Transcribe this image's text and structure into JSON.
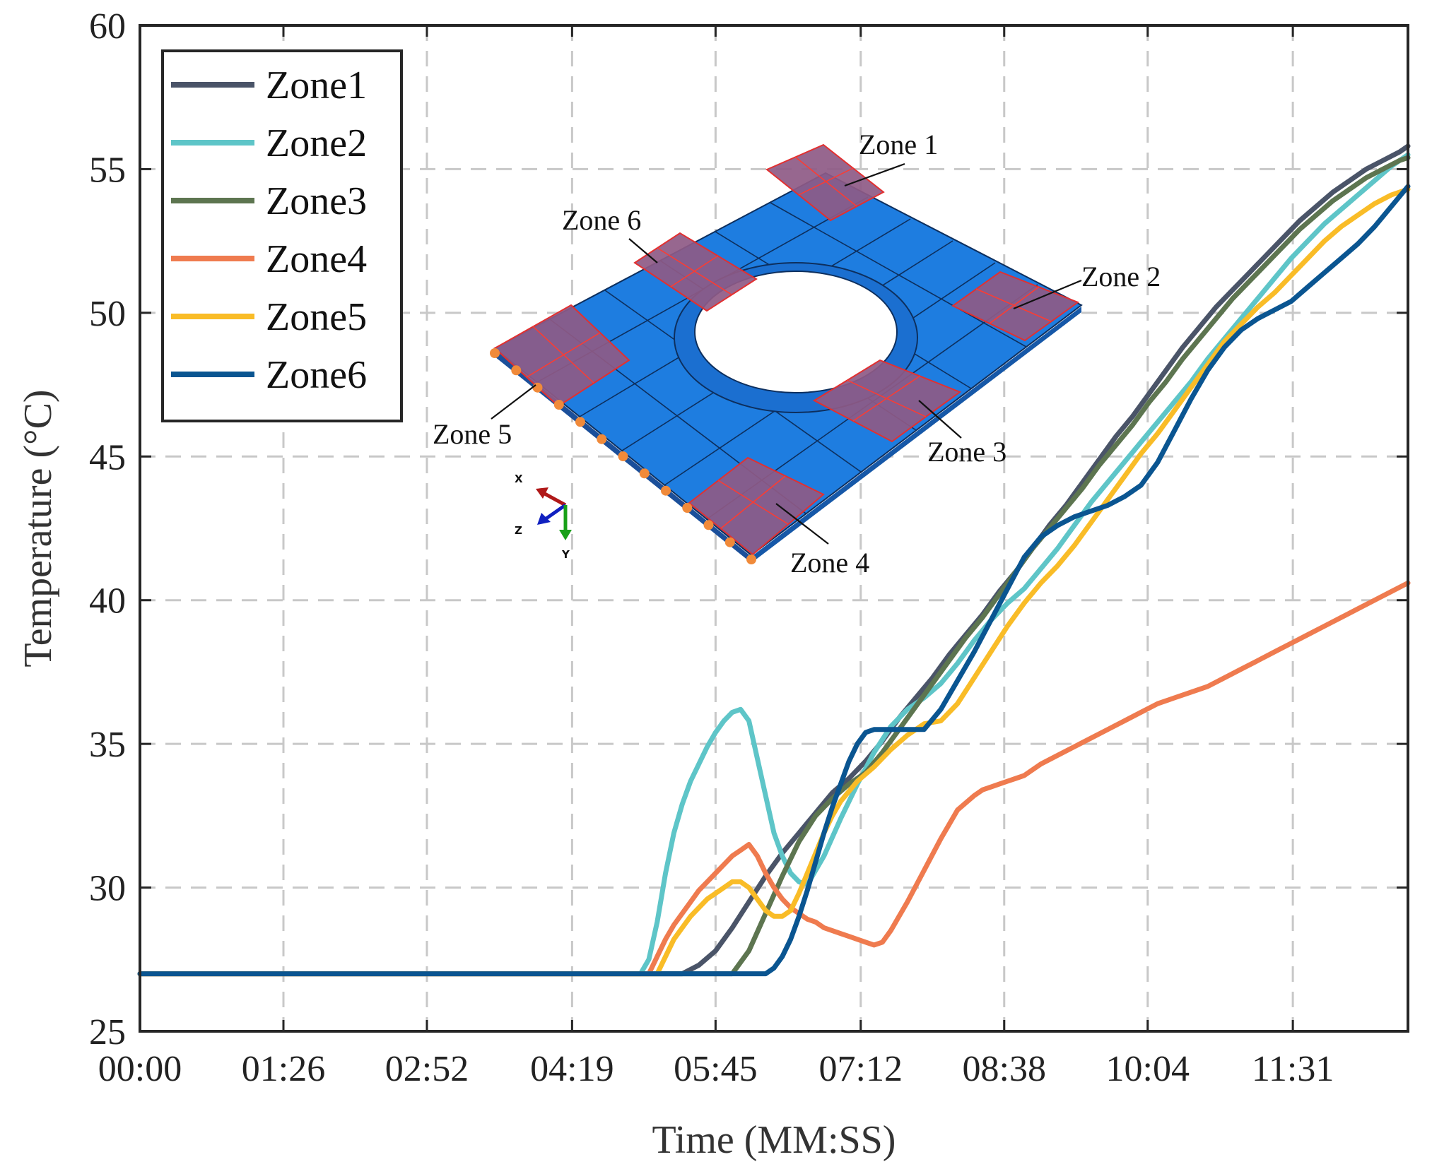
{
  "chart_data": {
    "type": "line",
    "xlabel": "Time (MM:SS)",
    "ylabel": "Temperature (°C)",
    "xlim": [
      0,
      760
    ],
    "ylim": [
      25,
      60
    ],
    "x_ticks": [
      {
        "value": 0,
        "label": "00:00"
      },
      {
        "value": 86,
        "label": "01:26"
      },
      {
        "value": 172,
        "label": "02:52"
      },
      {
        "value": 259,
        "label": "04:19"
      },
      {
        "value": 345,
        "label": "05:45"
      },
      {
        "value": 432,
        "label": "07:12"
      },
      {
        "value": 518,
        "label": "08:38"
      },
      {
        "value": 604,
        "label": "10:04"
      },
      {
        "value": 691,
        "label": "11:31"
      }
    ],
    "y_ticks": [
      25,
      30,
      35,
      40,
      45,
      50,
      55,
      60
    ],
    "grid": true,
    "legend_position": "top-left",
    "series": [
      {
        "name": "Zone1",
        "color": "#4a5468",
        "x": [
          0,
          325,
          335,
          345,
          355,
          365,
          375,
          385,
          395,
          405,
          415,
          425,
          435,
          445,
          455,
          465,
          475,
          485,
          495,
          505,
          515,
          525,
          535,
          545,
          555,
          565,
          575,
          585,
          595,
          605,
          615,
          625,
          635,
          645,
          655,
          665,
          675,
          685,
          695,
          705,
          715,
          725,
          735,
          745,
          755,
          760
        ],
        "y": [
          27,
          27,
          27.3,
          27.8,
          28.6,
          29.5,
          30.4,
          31.2,
          31.9,
          32.6,
          33.3,
          33.8,
          34.4,
          35.1,
          35.9,
          36.6,
          37.3,
          38.1,
          38.8,
          39.5,
          40.3,
          41,
          41.8,
          42.6,
          43.3,
          44.1,
          44.9,
          45.7,
          46.4,
          47.2,
          48,
          48.8,
          49.5,
          50.2,
          50.8,
          51.4,
          52,
          52.6,
          53.2,
          53.7,
          54.2,
          54.6,
          55,
          55.3,
          55.6,
          55.8
        ]
      },
      {
        "name": "Zone2",
        "color": "#5ec5c8",
        "x": [
          0,
          300,
          305,
          310,
          315,
          320,
          325,
          330,
          335,
          340,
          345,
          350,
          355,
          360,
          365,
          370,
          375,
          380,
          385,
          390,
          395,
          400,
          410,
          420,
          430,
          440,
          450,
          460,
          470,
          480,
          490,
          500,
          510,
          520,
          530,
          540,
          550,
          560,
          570,
          580,
          590,
          600,
          610,
          620,
          630,
          640,
          650,
          660,
          670,
          680,
          690,
          700,
          710,
          720,
          730,
          740,
          750,
          760
        ],
        "y": [
          27,
          27,
          27.5,
          28.8,
          30.5,
          31.9,
          32.9,
          33.7,
          34.3,
          34.9,
          35.4,
          35.8,
          36.1,
          36.2,
          35.8,
          34.5,
          33.2,
          31.9,
          31.1,
          30.5,
          30.2,
          30.1,
          31.1,
          32.4,
          33.6,
          34.7,
          35.6,
          36.2,
          36.6,
          37.1,
          37.8,
          38.6,
          39.3,
          39.9,
          40.4,
          41.1,
          41.8,
          42.6,
          43.4,
          44.1,
          44.8,
          45.5,
          46.2,
          46.9,
          47.6,
          48.4,
          49.1,
          49.8,
          50.5,
          51.2,
          51.9,
          52.5,
          53.1,
          53.6,
          54.1,
          54.6,
          55.1,
          55.5
        ]
      },
      {
        "name": "Zone3",
        "color": "#5d7550",
        "x": [
          0,
          355,
          365,
          375,
          385,
          395,
          405,
          415,
          425,
          435,
          445,
          455,
          465,
          475,
          485,
          495,
          505,
          515,
          525,
          535,
          545,
          555,
          565,
          575,
          585,
          595,
          605,
          615,
          625,
          635,
          645,
          655,
          665,
          675,
          685,
          695,
          705,
          715,
          725,
          735,
          745,
          755,
          760
        ],
        "y": [
          27,
          27,
          27.8,
          29.1,
          30.4,
          31.6,
          32.5,
          33.1,
          33.6,
          34,
          34.7,
          35.5,
          36.3,
          37.1,
          37.9,
          38.7,
          39.4,
          40.2,
          41,
          41.8,
          42.5,
          43.2,
          43.9,
          44.7,
          45.4,
          46.1,
          46.9,
          47.6,
          48.4,
          49.1,
          49.8,
          50.5,
          51.1,
          51.7,
          52.3,
          52.9,
          53.4,
          53.9,
          54.3,
          54.7,
          55,
          55.3,
          55.4
        ]
      },
      {
        "name": "Zone4",
        "color": "#ef7b4f",
        "x": [
          0,
          305,
          310,
          315,
          320,
          325,
          330,
          335,
          340,
          345,
          350,
          355,
          360,
          365,
          370,
          375,
          380,
          385,
          390,
          395,
          400,
          405,
          410,
          415,
          420,
          425,
          430,
          435,
          440,
          445,
          450,
          460,
          470,
          480,
          490,
          500,
          505,
          510,
          515,
          520,
          525,
          530,
          535,
          540,
          550,
          560,
          570,
          580,
          590,
          600,
          610,
          620,
          630,
          640,
          650,
          660,
          670,
          680,
          690,
          700,
          710,
          720,
          730,
          740,
          750,
          760
        ],
        "y": [
          27,
          27,
          27.6,
          28.2,
          28.7,
          29.1,
          29.5,
          29.9,
          30.2,
          30.5,
          30.8,
          31.1,
          31.3,
          31.5,
          31.1,
          30.5,
          30,
          29.6,
          29.3,
          29.1,
          28.9,
          28.8,
          28.6,
          28.5,
          28.4,
          28.3,
          28.2,
          28.1,
          28,
          28.1,
          28.5,
          29.5,
          30.6,
          31.7,
          32.7,
          33.2,
          33.4,
          33.5,
          33.6,
          33.7,
          33.8,
          33.9,
          34.1,
          34.3,
          34.6,
          34.9,
          35.2,
          35.5,
          35.8,
          36.1,
          36.4,
          36.6,
          36.8,
          37,
          37.3,
          37.6,
          37.9,
          38.2,
          38.5,
          38.8,
          39.1,
          39.4,
          39.7,
          40,
          40.3,
          40.6
        ]
      },
      {
        "name": "Zone5",
        "color": "#f9bc27",
        "x": [
          0,
          310,
          315,
          320,
          325,
          330,
          335,
          340,
          345,
          350,
          355,
          360,
          365,
          370,
          375,
          380,
          385,
          390,
          395,
          400,
          405,
          410,
          415,
          420,
          430,
          440,
          450,
          460,
          470,
          480,
          490,
          500,
          510,
          520,
          530,
          540,
          550,
          560,
          570,
          580,
          590,
          600,
          610,
          620,
          630,
          640,
          650,
          660,
          670,
          680,
          690,
          700,
          710,
          720,
          730,
          740,
          750,
          760
        ],
        "y": [
          27,
          27,
          27.6,
          28.2,
          28.6,
          29,
          29.3,
          29.6,
          29.8,
          30,
          30.2,
          30.2,
          30,
          29.6,
          29.2,
          29,
          29,
          29.2,
          29.8,
          30.5,
          31.2,
          31.9,
          32.5,
          33,
          33.7,
          34.2,
          34.8,
          35.3,
          35.7,
          35.8,
          36.4,
          37.3,
          38.2,
          39.1,
          39.9,
          40.6,
          41.2,
          41.9,
          42.7,
          43.5,
          44.3,
          45.1,
          45.8,
          46.6,
          47.4,
          48.2,
          49,
          49.6,
          50.2,
          50.7,
          51.3,
          51.9,
          52.5,
          53,
          53.4,
          53.8,
          54.1,
          54.3
        ]
      },
      {
        "name": "Zone6",
        "color": "#0a5591",
        "x": [
          0,
          375,
          380,
          385,
          390,
          395,
          400,
          405,
          410,
          415,
          420,
          425,
          430,
          435,
          440,
          445,
          450,
          460,
          470,
          480,
          490,
          500,
          510,
          520,
          530,
          540,
          550,
          560,
          570,
          580,
          590,
          600,
          610,
          620,
          630,
          640,
          650,
          660,
          670,
          680,
          690,
          700,
          710,
          720,
          730,
          740,
          750,
          760
        ],
        "y": [
          27,
          27,
          27.2,
          27.6,
          28.2,
          29,
          29.9,
          30.9,
          31.9,
          32.8,
          33.6,
          34.4,
          35,
          35.4,
          35.5,
          35.5,
          35.5,
          35.5,
          35.5,
          36.2,
          37.2,
          38.2,
          39.3,
          40.4,
          41.5,
          42.2,
          42.6,
          42.9,
          43.1,
          43.3,
          43.6,
          44,
          44.8,
          45.9,
          47,
          48,
          48.8,
          49.4,
          49.8,
          50.1,
          50.4,
          50.9,
          51.4,
          51.9,
          52.4,
          53,
          53.7,
          54.4
        ]
      }
    ]
  },
  "inset": {
    "zone_labels": [
      "Zone 1",
      "Zone 2",
      "Zone 3",
      "Zone 4",
      "Zone 5",
      "Zone 6"
    ],
    "axis_letters": {
      "x": "X",
      "y": "Y",
      "z": "Z"
    }
  }
}
